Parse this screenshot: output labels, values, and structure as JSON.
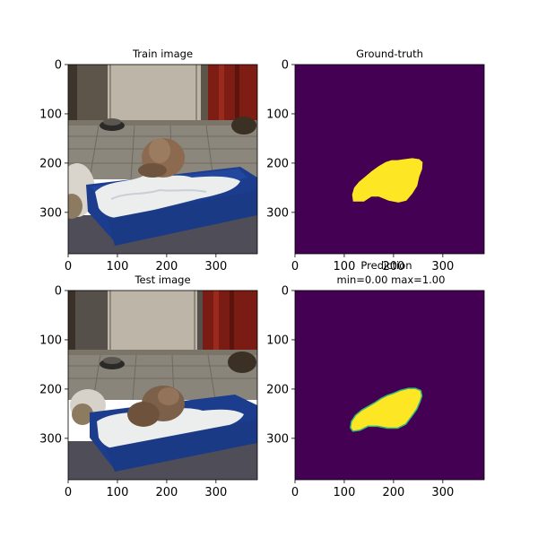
{
  "chart_data": [
    {
      "type": "image",
      "panel": "train-image",
      "title": "Train image",
      "xticks": [
        0,
        100,
        200,
        300
      ],
      "yticks": [
        0,
        100,
        200,
        300
      ],
      "xlim": [
        0,
        384
      ],
      "ylim": [
        384,
        0
      ],
      "content": "photo"
    },
    {
      "type": "heatmap",
      "panel": "ground-truth",
      "title": "Ground-truth",
      "xticks": [
        0,
        100,
        200,
        300
      ],
      "yticks": [
        0,
        100,
        200,
        300
      ],
      "xlim": [
        0,
        384
      ],
      "ylim": [
        384,
        0
      ],
      "colormap": "viridis",
      "mask_outline": [
        [
          118,
          278
        ],
        [
          140,
          278
        ],
        [
          155,
          268
        ],
        [
          170,
          268
        ],
        [
          190,
          276
        ],
        [
          210,
          280
        ],
        [
          226,
          276
        ],
        [
          238,
          262
        ],
        [
          248,
          246
        ],
        [
          252,
          228
        ],
        [
          258,
          212
        ],
        [
          259,
          198
        ],
        [
          252,
          192
        ],
        [
          238,
          190
        ],
        [
          222,
          192
        ],
        [
          208,
          194
        ],
        [
          196,
          194
        ],
        [
          184,
          198
        ],
        [
          170,
          206
        ],
        [
          156,
          216
        ],
        [
          142,
          228
        ],
        [
          130,
          238
        ],
        [
          120,
          250
        ],
        [
          116,
          264
        ]
      ]
    },
    {
      "type": "image",
      "panel": "test-image",
      "title": "Test image",
      "xticks": [
        0,
        100,
        200,
        300
      ],
      "yticks": [
        0,
        100,
        200,
        300
      ],
      "xlim": [
        0,
        384
      ],
      "ylim": [
        384,
        0
      ],
      "content": "photo"
    },
    {
      "type": "heatmap",
      "panel": "prediction",
      "title": "Prediction",
      "subtitle": "min=0.00 max=1.00",
      "xticks": [
        0,
        100,
        200,
        300
      ],
      "yticks": [
        0,
        100,
        200,
        300
      ],
      "xlim": [
        0,
        384
      ],
      "ylim": [
        384,
        0
      ],
      "colormap": "viridis",
      "vmin": 0.0,
      "vmax": 1.0,
      "mask_outline": [
        [
          118,
          284
        ],
        [
          132,
          282
        ],
        [
          148,
          274
        ],
        [
          168,
          274
        ],
        [
          188,
          278
        ],
        [
          208,
          278
        ],
        [
          224,
          270
        ],
        [
          236,
          254
        ],
        [
          246,
          240
        ],
        [
          252,
          226
        ],
        [
          256,
          214
        ],
        [
          254,
          204
        ],
        [
          244,
          200
        ],
        [
          230,
          200
        ],
        [
          214,
          204
        ],
        [
          200,
          210
        ],
        [
          188,
          214
        ],
        [
          176,
          220
        ],
        [
          164,
          228
        ],
        [
          150,
          236
        ],
        [
          136,
          244
        ],
        [
          124,
          254
        ],
        [
          116,
          266
        ],
        [
          114,
          278
        ]
      ]
    }
  ],
  "colors": {
    "viridis_low": "#440154",
    "viridis_high": "#fde725",
    "viridis_edge": "#35b779"
  }
}
